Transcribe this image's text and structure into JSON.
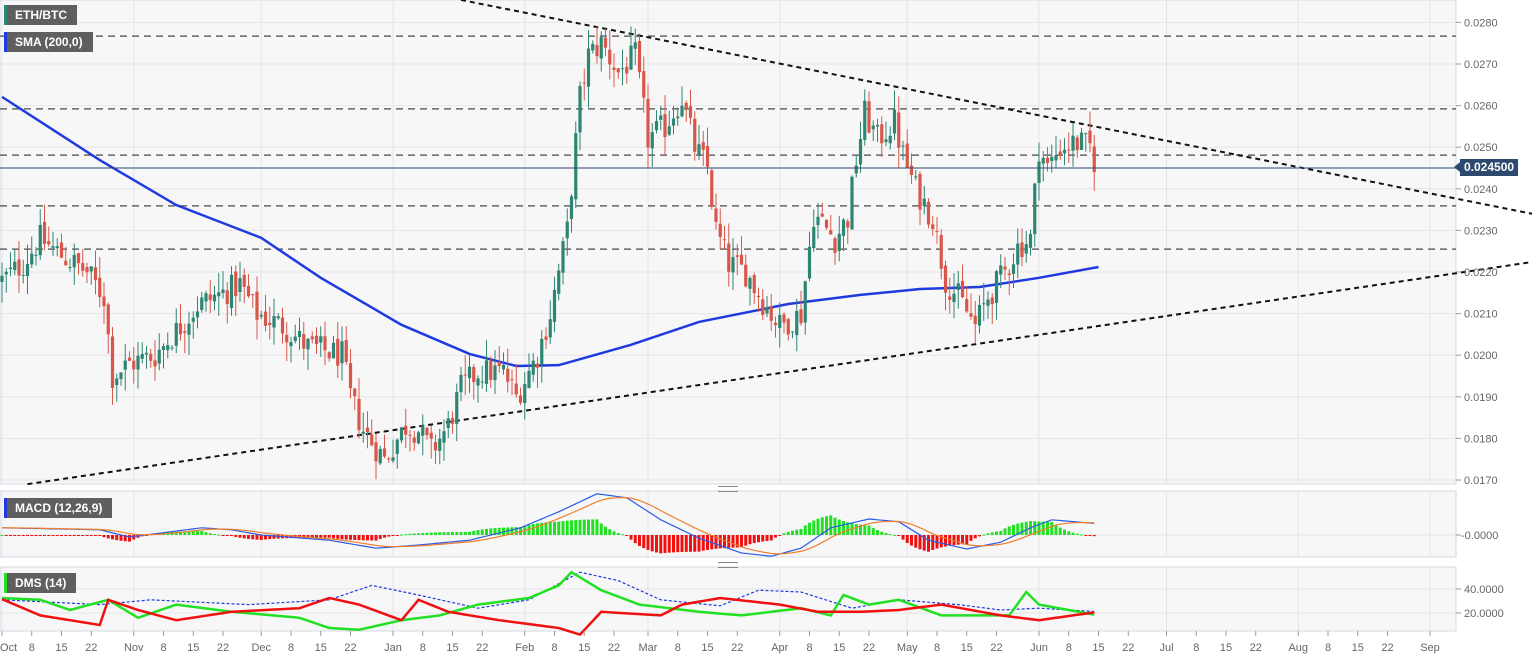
{
  "symbol": "ETH/BTC",
  "indicators": {
    "sma": "SMA (200,0)",
    "macd": "MACD (12,26,9)",
    "dms": "DMS (14)"
  },
  "current_price": "0.024500",
  "colors": {
    "up": "#2e8572",
    "down": "#d9574a",
    "sma": "#1f3be0",
    "macd": "#2b5ce6",
    "signal": "#f07d2a",
    "hist_up": "#22e022",
    "hist_down": "#f01010",
    "di_plus": "#22e022",
    "di_minus": "#f01010",
    "adx": "#1f3be0",
    "price_line": "#2d4a6e"
  },
  "chart_data": [
    {
      "type": "candlestick",
      "title": "ETH/BTC",
      "x_unit": "days since Oct 1",
      "ylim": [
        0.017,
        0.0285
      ],
      "y_ticks": [
        "0.0280",
        "0.0270",
        "0.0260",
        "0.0250",
        "0.0240",
        "0.0230",
        "0.0220",
        "0.0210",
        "0.0200",
        "0.0190",
        "0.0180",
        "0.0170"
      ],
      "x_ticks": [
        {
          "label": "Oct",
          "day": 0
        },
        {
          "label": "8",
          "day": 7
        },
        {
          "label": "15",
          "day": 14
        },
        {
          "label": "22",
          "day": 21
        },
        {
          "label": "Nov",
          "day": 31
        },
        {
          "label": "8",
          "day": 38
        },
        {
          "label": "15",
          "day": 45
        },
        {
          "label": "22",
          "day": 52
        },
        {
          "label": "Dec",
          "day": 61
        },
        {
          "label": "8",
          "day": 68
        },
        {
          "label": "15",
          "day": 75
        },
        {
          "label": "22",
          "day": 82
        },
        {
          "label": "Jan",
          "day": 92
        },
        {
          "label": "8",
          "day": 99
        },
        {
          "label": "15",
          "day": 106
        },
        {
          "label": "22",
          "day": 113
        },
        {
          "label": "Feb",
          "day": 123
        },
        {
          "label": "8",
          "day": 130
        },
        {
          "label": "15",
          "day": 137
        },
        {
          "label": "22",
          "day": 144
        },
        {
          "label": "Mar",
          "day": 152
        },
        {
          "label": "8",
          "day": 159
        },
        {
          "label": "15",
          "day": 166
        },
        {
          "label": "22",
          "day": 173
        },
        {
          "label": "Apr",
          "day": 183
        },
        {
          "label": "8",
          "day": 190
        },
        {
          "label": "15",
          "day": 197
        },
        {
          "label": "22",
          "day": 204
        },
        {
          "label": "May",
          "day": 213
        },
        {
          "label": "8",
          "day": 220
        },
        {
          "label": "15",
          "day": 227
        },
        {
          "label": "22",
          "day": 234
        },
        {
          "label": "Jun",
          "day": 244
        },
        {
          "label": "8",
          "day": 251
        },
        {
          "label": "15",
          "day": 258
        },
        {
          "label": "22",
          "day": 265
        },
        {
          "label": "Jul",
          "day": 274
        },
        {
          "label": "8",
          "day": 281
        },
        {
          "label": "15",
          "day": 288
        },
        {
          "label": "22",
          "day": 295
        },
        {
          "label": "Aug",
          "day": 305
        },
        {
          "label": "8",
          "day": 312
        },
        {
          "label": "15",
          "day": 319
        },
        {
          "label": "22",
          "day": 326
        },
        {
          "label": "Sep",
          "day": 336
        }
      ],
      "close_path": [
        [
          0,
          0.0218
        ],
        [
          5,
          0.0222
        ],
        [
          9,
          0.0228
        ],
        [
          14,
          0.0224
        ],
        [
          20,
          0.022
        ],
        [
          24,
          0.0214
        ],
        [
          26,
          0.0195
        ],
        [
          30,
          0.0198
        ],
        [
          36,
          0.02
        ],
        [
          42,
          0.0207
        ],
        [
          46,
          0.0212
        ],
        [
          52,
          0.0215
        ],
        [
          56,
          0.0217
        ],
        [
          60,
          0.021
        ],
        [
          66,
          0.0207
        ],
        [
          72,
          0.0202
        ],
        [
          80,
          0.02
        ],
        [
          82,
          0.019
        ],
        [
          85,
          0.0182
        ],
        [
          90,
          0.0175
        ],
        [
          95,
          0.0183
        ],
        [
          98,
          0.0182
        ],
        [
          101,
          0.0177
        ],
        [
          105,
          0.0183
        ],
        [
          108,
          0.0192
        ],
        [
          112,
          0.0196
        ],
        [
          118,
          0.0196
        ],
        [
          121,
          0.019
        ],
        [
          126,
          0.02
        ],
        [
          129,
          0.021
        ],
        [
          133,
          0.023
        ],
        [
          136,
          0.0262
        ],
        [
          138,
          0.0272
        ],
        [
          141,
          0.0275
        ],
        [
          145,
          0.0268
        ],
        [
          149,
          0.0272
        ],
        [
          152,
          0.0252
        ],
        [
          156,
          0.0255
        ],
        [
          160,
          0.0262
        ],
        [
          163,
          0.025
        ],
        [
          166,
          0.0245
        ],
        [
          168,
          0.023
        ],
        [
          171,
          0.0222
        ],
        [
          175,
          0.022
        ],
        [
          179,
          0.0213
        ],
        [
          183,
          0.0207
        ],
        [
          188,
          0.021
        ],
        [
          191,
          0.0234
        ],
        [
          196,
          0.0228
        ],
        [
          199,
          0.0233
        ],
        [
          201,
          0.0247
        ],
        [
          203,
          0.0258
        ],
        [
          206,
          0.0252
        ],
        [
          210,
          0.0256
        ],
        [
          212,
          0.0248
        ],
        [
          215,
          0.024
        ],
        [
          219,
          0.0233
        ],
        [
          222,
          0.0218
        ],
        [
          225,
          0.0214
        ],
        [
          229,
          0.0207
        ],
        [
          232,
          0.0214
        ],
        [
          236,
          0.022
        ],
        [
          239,
          0.0226
        ],
        [
          242,
          0.0228
        ],
        [
          244,
          0.025
        ],
        [
          246,
          0.0245
        ],
        [
          249,
          0.025
        ],
        [
          253,
          0.0251
        ],
        [
          256,
          0.025
        ],
        [
          257,
          0.0244
        ]
      ],
      "sma_200": [
        [
          0,
          0.02621
        ],
        [
          23,
          0.02469
        ],
        [
          41,
          0.02361
        ],
        [
          61,
          0.02282
        ],
        [
          75,
          0.02186
        ],
        [
          94,
          0.02073
        ],
        [
          110,
          0.02003
        ],
        [
          121,
          0.01974
        ],
        [
          131,
          0.01976
        ],
        [
          148,
          0.02025
        ],
        [
          164,
          0.0208
        ],
        [
          185,
          0.02123
        ],
        [
          202,
          0.02145
        ],
        [
          216,
          0.02159
        ],
        [
          230,
          0.02164
        ],
        [
          244,
          0.02186
        ],
        [
          258,
          0.02212
        ]
      ],
      "horizontal_levels": [
        0.02767,
        0.02592,
        0.02481,
        0.02359,
        0.02255
      ],
      "trend_lines": [
        {
          "name": "descending",
          "from": [
            108,
            0.02854
          ],
          "to": [
            360,
            0.0234
          ]
        },
        {
          "name": "ascending",
          "from": [
            6,
            0.0169
          ],
          "to": [
            360,
            0.02224
          ]
        }
      ],
      "last_price": 0.0245
    },
    {
      "type": "line",
      "title": "MACD (12,26,9)",
      "y_ticks": [
        "-0.0000"
      ],
      "ylim": [
        -0.0007,
        0.0011
      ],
      "macd": [
        [
          0,
          0.00018
        ],
        [
          23,
          0.00013
        ],
        [
          30,
          -5e-05
        ],
        [
          47,
          0.00018
        ],
        [
          54,
          0.00013
        ],
        [
          61,
          0
        ],
        [
          77,
          -0.00013
        ],
        [
          88,
          -0.00033
        ],
        [
          98,
          -0.00025
        ],
        [
          110,
          -0.00013
        ],
        [
          122,
          0.00018
        ],
        [
          131,
          0.00058
        ],
        [
          140,
          0.00103
        ],
        [
          147,
          0.00093
        ],
        [
          155,
          0.00038
        ],
        [
          164,
          -8e-05
        ],
        [
          174,
          -0.00045
        ],
        [
          181,
          -0.00053
        ],
        [
          188,
          -0.00033
        ],
        [
          195,
          0.00018
        ],
        [
          204,
          0.0004
        ],
        [
          211,
          0.00033
        ],
        [
          218,
          -0.00013
        ],
        [
          227,
          -0.00035
        ],
        [
          235,
          -0.00018
        ],
        [
          242,
          0.00018
        ],
        [
          247,
          0.00038
        ],
        [
          258,
          0.00028
        ]
      ],
      "signal_period": 9
    },
    {
      "type": "line",
      "title": "DMS (14)",
      "y_ticks": [
        "40.0000",
        "20.0000"
      ],
      "ylim": [
        0,
        62
      ],
      "di_plus": [
        [
          0,
          32.5
        ],
        [
          9,
          31
        ],
        [
          16,
          22.5
        ],
        [
          25,
          31
        ],
        [
          32,
          16
        ],
        [
          41,
          27
        ],
        [
          54,
          21
        ],
        [
          70,
          16
        ],
        [
          77,
          7.5
        ],
        [
          84,
          6
        ],
        [
          94,
          14
        ],
        [
          103,
          18
        ],
        [
          112,
          27
        ],
        [
          124,
          32.5
        ],
        [
          131,
          43
        ],
        [
          134,
          54
        ],
        [
          141,
          39
        ],
        [
          150,
          27
        ],
        [
          164,
          21
        ],
        [
          174,
          18
        ],
        [
          188,
          24
        ],
        [
          195,
          18
        ],
        [
          198,
          35
        ],
        [
          204,
          27
        ],
        [
          211,
          31
        ],
        [
          221,
          18
        ],
        [
          237,
          18
        ],
        [
          241,
          37.5
        ],
        [
          244,
          27
        ],
        [
          258,
          18
        ]
      ],
      "di_minus": [
        [
          0,
          31.5
        ],
        [
          9,
          18
        ],
        [
          23,
          10
        ],
        [
          25,
          31
        ],
        [
          32,
          22.5
        ],
        [
          41,
          14
        ],
        [
          54,
          21
        ],
        [
          70,
          24
        ],
        [
          77,
          32.5
        ],
        [
          84,
          27
        ],
        [
          94,
          14
        ],
        [
          98,
          31
        ],
        [
          105,
          21
        ],
        [
          117,
          14
        ],
        [
          131,
          7.5
        ],
        [
          136,
          2
        ],
        [
          141,
          21
        ],
        [
          155,
          18
        ],
        [
          160,
          27
        ],
        [
          169,
          32.5
        ],
        [
          183,
          27
        ],
        [
          192,
          21
        ],
        [
          202,
          21
        ],
        [
          211,
          22.5
        ],
        [
          221,
          27
        ],
        [
          235,
          18
        ],
        [
          244,
          14
        ],
        [
          258,
          21
        ]
      ],
      "adx": [
        [
          0,
          31
        ],
        [
          23,
          27
        ],
        [
          35,
          31
        ],
        [
          58,
          27
        ],
        [
          77,
          31
        ],
        [
          87,
          43
        ],
        [
          98,
          35
        ],
        [
          112,
          24
        ],
        [
          124,
          31
        ],
        [
          136,
          54
        ],
        [
          145,
          47
        ],
        [
          155,
          31
        ],
        [
          169,
          26
        ],
        [
          178,
          39
        ],
        [
          188,
          37.5
        ],
        [
          200,
          24
        ],
        [
          211,
          31
        ],
        [
          225,
          27
        ],
        [
          235,
          22.5
        ],
        [
          244,
          24
        ],
        [
          258,
          21
        ]
      ]
    }
  ]
}
